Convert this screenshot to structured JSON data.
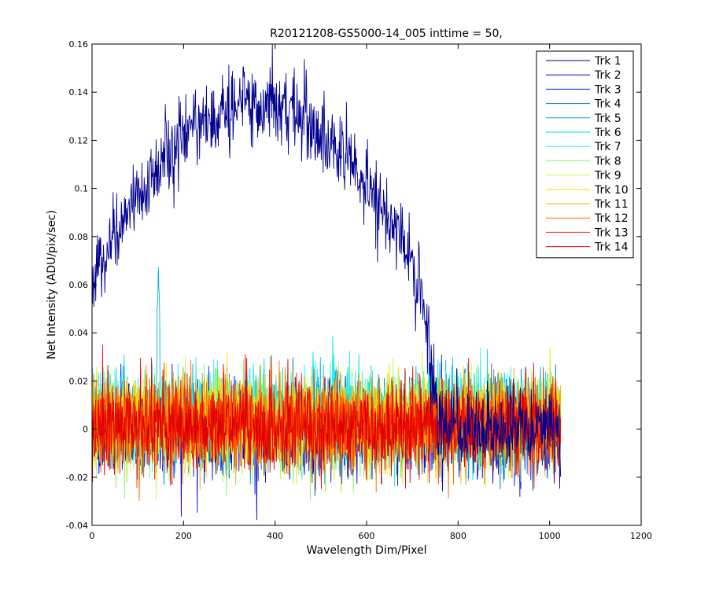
{
  "chart_data": {
    "type": "line",
    "title": "R20121208-GS5000-14_005 inttime = 50,",
    "xlabel": "Wavelength Dim/Pixel",
    "ylabel": "Net Intensity (ADU/pix/sec)",
    "xlim": [
      0,
      1200
    ],
    "ylim": [
      -0.04,
      0.16
    ],
    "xticks": [
      0,
      200,
      400,
      600,
      800,
      1000,
      1200
    ],
    "yticks": [
      -0.04,
      -0.02,
      0,
      0.02,
      0.04,
      0.06,
      0.08,
      0.1,
      0.12,
      0.14,
      0.16
    ],
    "xtick_labels": [
      "0",
      "200",
      "400",
      "600",
      "800",
      "1000",
      "1200"
    ],
    "ytick_labels": [
      "-0.04",
      "-0.02",
      "0",
      "0.02",
      "0.04",
      "0.06",
      "0.08",
      "0.1",
      "0.12",
      "0.14",
      "0.16"
    ],
    "x_range_data": [
      1,
      1024
    ],
    "grid": false,
    "legend_position": "top-right",
    "series": [
      {
        "name": "Trk 1",
        "color": "#00008F",
        "profile": "arc",
        "peak_x": 360,
        "peak_y": 0.135,
        "start_y": 0.062,
        "cutoff_x": 760,
        "noise": 0.008
      },
      {
        "name": "Trk 2",
        "color": "#0000CF",
        "profile": "noise",
        "mean": 0.0,
        "noise": 0.009
      },
      {
        "name": "Trk 3",
        "color": "#0010FF",
        "profile": "noise",
        "mean": 0.0,
        "noise": 0.009
      },
      {
        "name": "Trk 4",
        "color": "#0070C0",
        "profile": "noise",
        "mean": 0.001,
        "noise": 0.009
      },
      {
        "name": "Trk 5",
        "color": "#00B0E0",
        "profile": "noise",
        "mean": 0.004,
        "noise": 0.009,
        "spike_x": 145,
        "spike_y": 0.067
      },
      {
        "name": "Trk 6",
        "color": "#00E0F0",
        "profile": "noise",
        "mean": 0.006,
        "noise": 0.009
      },
      {
        "name": "Trk 7",
        "color": "#30F0E0",
        "profile": "noise",
        "mean": 0.007,
        "noise": 0.009
      },
      {
        "name": "Trk 8",
        "color": "#90EE70",
        "profile": "noise",
        "mean": 0.002,
        "noise": 0.009
      },
      {
        "name": "Trk 9",
        "color": "#D8F040",
        "profile": "noise",
        "mean": 0.003,
        "noise": 0.009
      },
      {
        "name": "Trk 10",
        "color": "#F0E000",
        "profile": "noise",
        "mean": 0.004,
        "noise": 0.009
      },
      {
        "name": "Trk 11",
        "color": "#F5B000",
        "profile": "noise",
        "mean": 0.003,
        "noise": 0.009
      },
      {
        "name": "Trk 12",
        "color": "#FF7000",
        "profile": "noise",
        "mean": 0.002,
        "noise": 0.009
      },
      {
        "name": "Trk 13",
        "color": "#FF3000",
        "profile": "noise",
        "mean": 0.002,
        "noise": 0.009
      },
      {
        "name": "Trk 14",
        "color": "#E00000",
        "profile": "noise",
        "mean": 0.001,
        "noise": 0.009
      }
    ]
  }
}
